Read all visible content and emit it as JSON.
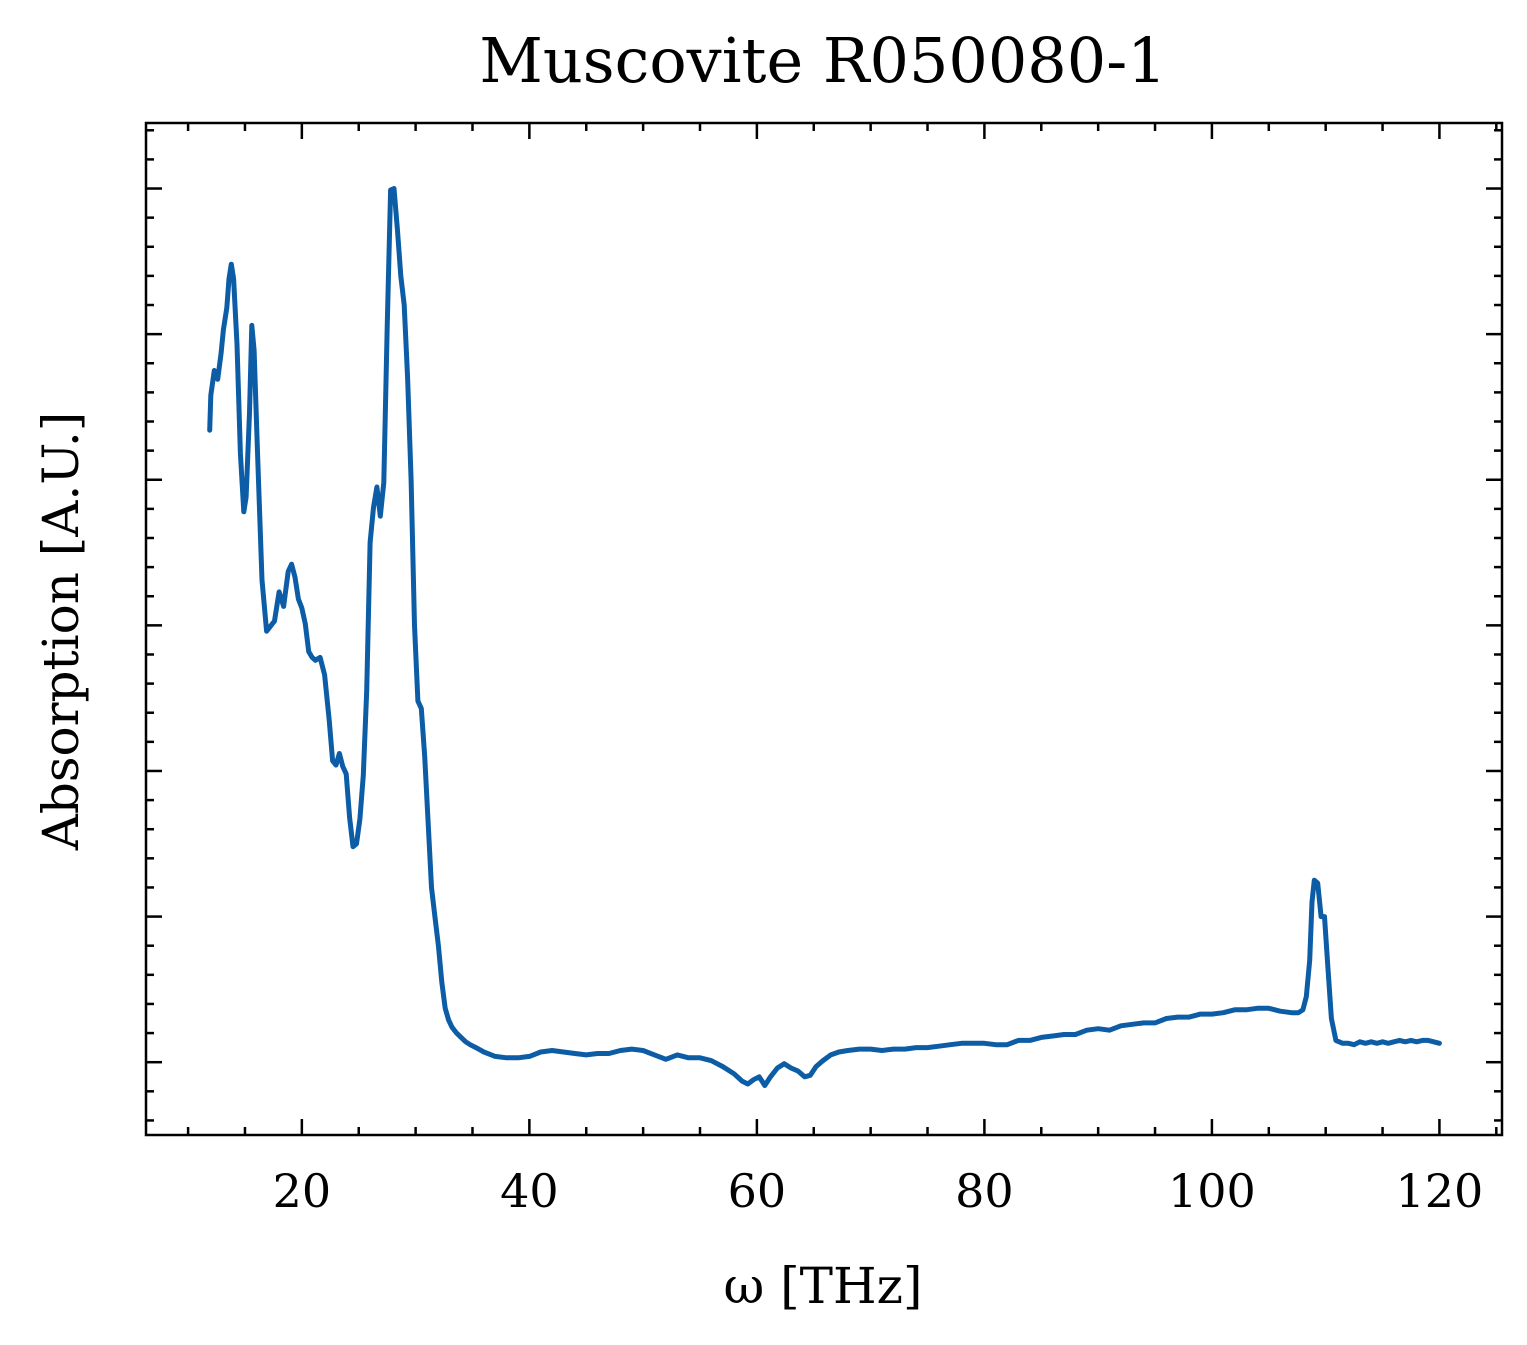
{
  "chart_data": {
    "type": "line",
    "title": "Muscovite R050080-1",
    "xlabel": "ω [THz]",
    "ylabel": "Absorption [A.U.]",
    "xlim": [
      6.3,
      125.5
    ],
    "ylim": [
      -0.05,
      0.645
    ],
    "x_ticks": [
      20,
      40,
      60,
      80,
      100,
      120
    ],
    "x_tick_labels": [
      "20",
      "40",
      "60",
      "80",
      "100",
      "120"
    ],
    "x_minor_tick_step": 5,
    "y_ticks": [
      0.0,
      0.1,
      0.2,
      0.3,
      0.4,
      0.5,
      0.6
    ],
    "y_minor_tick_step": 0.02,
    "y_tick_labels_shown": false,
    "grid": false,
    "legend": "none",
    "series": [
      {
        "color": "#0C5DA5",
        "x": [
          11.9,
          12.0,
          12.3,
          12.6,
          12.9,
          13.1,
          13.4,
          13.6,
          13.8,
          14.0,
          14.3,
          14.6,
          14.9,
          15.1,
          15.4,
          15.6,
          15.8,
          16.1,
          16.5,
          16.9,
          17.2,
          17.6,
          18.0,
          18.4,
          18.8,
          19.1,
          19.4,
          19.7,
          20.0,
          20.3,
          20.6,
          20.9,
          21.2,
          21.6,
          22.0,
          22.4,
          22.7,
          23.0,
          23.3,
          23.6,
          23.9,
          24.2,
          24.5,
          24.8,
          25.1,
          25.4,
          25.7,
          26.0,
          26.3,
          26.6,
          26.9,
          27.2,
          27.5,
          27.8,
          28.1,
          28.4,
          28.7,
          29.0,
          29.3,
          29.6,
          29.9,
          30.2,
          30.5,
          30.8,
          31.1,
          31.4,
          31.7,
          32.0,
          32.3,
          32.6,
          32.9,
          33.2,
          33.6,
          34.0,
          34.4,
          34.8,
          35.3,
          36.0,
          37.0,
          38.0,
          39.0,
          40.0,
          41.0,
          42.0,
          43.0,
          44.0,
          45.0,
          46.0,
          47.0,
          48.0,
          49.0,
          50.0,
          51.0,
          52.0,
          53.0,
          54.0,
          55.0,
          56.0,
          57.0,
          58.0,
          58.7,
          59.2,
          59.7,
          60.2,
          60.7,
          61.2,
          61.8,
          62.4,
          63.0,
          63.6,
          64.2,
          64.7,
          65.2,
          65.8,
          66.5,
          67.2,
          68.0,
          69.0,
          70.0,
          71.0,
          72.0,
          73.0,
          74.0,
          75.0,
          76.0,
          77.0,
          78.0,
          79.0,
          80.0,
          81.0,
          82.0,
          83.0,
          84.0,
          85.0,
          86.0,
          87.0,
          88.0,
          89.0,
          90.0,
          91.0,
          92.0,
          93.0,
          94.0,
          95.0,
          96.0,
          97.0,
          98.0,
          99.0,
          100.0,
          101.0,
          102.0,
          103.0,
          104.0,
          105.0,
          106.0,
          107.0,
          107.6,
          108.0,
          108.3,
          108.6,
          108.8,
          109.0,
          109.3,
          109.6,
          109.9,
          110.2,
          110.5,
          110.9,
          111.5,
          112.0,
          112.5,
          113.0,
          113.5,
          114.0,
          114.5,
          115.0,
          115.5,
          116.0,
          116.5,
          117.0,
          117.5,
          118.0,
          118.5,
          119.0,
          119.5,
          120.0
        ],
        "y": [
          0.434,
          0.458,
          0.475,
          0.469,
          0.487,
          0.503,
          0.518,
          0.538,
          0.548,
          0.538,
          0.493,
          0.418,
          0.378,
          0.388,
          0.446,
          0.506,
          0.489,
          0.419,
          0.331,
          0.296,
          0.299,
          0.303,
          0.323,
          0.313,
          0.337,
          0.342,
          0.333,
          0.318,
          0.312,
          0.301,
          0.282,
          0.278,
          0.276,
          0.278,
          0.266,
          0.235,
          0.207,
          0.204,
          0.212,
          0.203,
          0.198,
          0.168,
          0.148,
          0.15,
          0.167,
          0.197,
          0.255,
          0.357,
          0.381,
          0.395,
          0.375,
          0.398,
          0.505,
          0.599,
          0.6,
          0.572,
          0.54,
          0.52,
          0.47,
          0.4,
          0.3,
          0.248,
          0.243,
          0.21,
          0.165,
          0.12,
          0.1,
          0.08,
          0.055,
          0.037,
          0.029,
          0.024,
          0.02,
          0.017,
          0.014,
          0.012,
          0.01,
          0.007,
          0.004,
          0.003,
          0.003,
          0.004,
          0.007,
          0.008,
          0.007,
          0.006,
          0.005,
          0.006,
          0.006,
          0.008,
          0.009,
          0.008,
          0.005,
          0.002,
          0.005,
          0.003,
          0.003,
          0.001,
          -0.003,
          -0.008,
          -0.013,
          -0.015,
          -0.012,
          -0.01,
          -0.016,
          -0.01,
          -0.004,
          -0.001,
          -0.004,
          -0.006,
          -0.01,
          -0.009,
          -0.003,
          0.001,
          0.005,
          0.007,
          0.008,
          0.009,
          0.009,
          0.008,
          0.009,
          0.009,
          0.01,
          0.01,
          0.011,
          0.012,
          0.013,
          0.013,
          0.013,
          0.012,
          0.012,
          0.015,
          0.015,
          0.017,
          0.018,
          0.019,
          0.019,
          0.022,
          0.023,
          0.022,
          0.025,
          0.026,
          0.027,
          0.027,
          0.03,
          0.031,
          0.031,
          0.033,
          0.033,
          0.034,
          0.036,
          0.036,
          0.037,
          0.037,
          0.035,
          0.034,
          0.034,
          0.036,
          0.045,
          0.07,
          0.11,
          0.125,
          0.123,
          0.1,
          0.1,
          0.065,
          0.03,
          0.015,
          0.013,
          0.013,
          0.012,
          0.014,
          0.013,
          0.014,
          0.013,
          0.014,
          0.013,
          0.014,
          0.015,
          0.014,
          0.015,
          0.014,
          0.015,
          0.015,
          0.014,
          0.013
        ]
      }
    ]
  }
}
